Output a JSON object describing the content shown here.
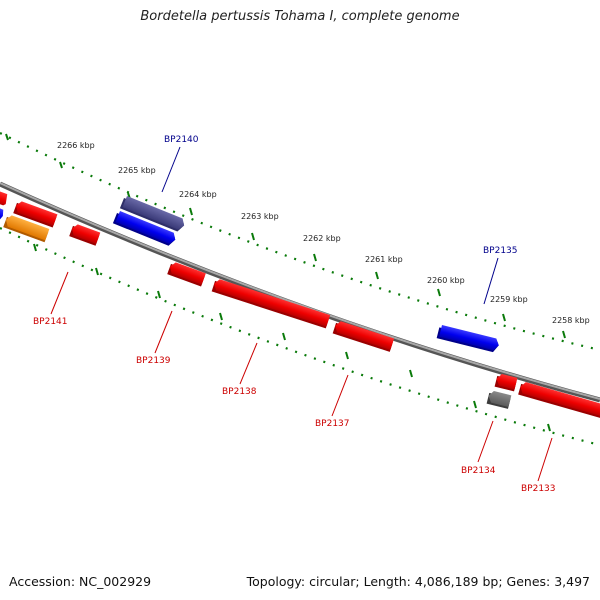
{
  "title": "Bordetella pertussis Tohama I, complete genome",
  "footer": {
    "accession": "Accession: NC_002929",
    "summary": "Topology: circular; Length: 4,086,189 bp; Genes: 3,497"
  },
  "colors": {
    "backbone": "#7d7d7d",
    "forward_gene": "#0000ee",
    "reverse_gene": "#ee0000",
    "tick": "#0a7a0a",
    "forward_label": "#00008b",
    "reverse_label": "#cc0000",
    "highlight_gene": "#4b4b8c",
    "orange_gene": "#ff8c00",
    "gray_gene": "#6e6e6e"
  },
  "scale_labels": [
    "2266 kbp",
    "2265 kbp",
    "2264 kbp",
    "2263 kbp",
    "2262 kbp",
    "2261 kbp",
    "2260 kbp",
    "2259 kbp",
    "2258 kbp"
  ],
  "gene_labels": {
    "forward": [
      "BP2140",
      "BP2135"
    ],
    "reverse": [
      "BP2141",
      "BP2139",
      "BP2138",
      "BP2137",
      "BP2134",
      "BP2133"
    ]
  }
}
